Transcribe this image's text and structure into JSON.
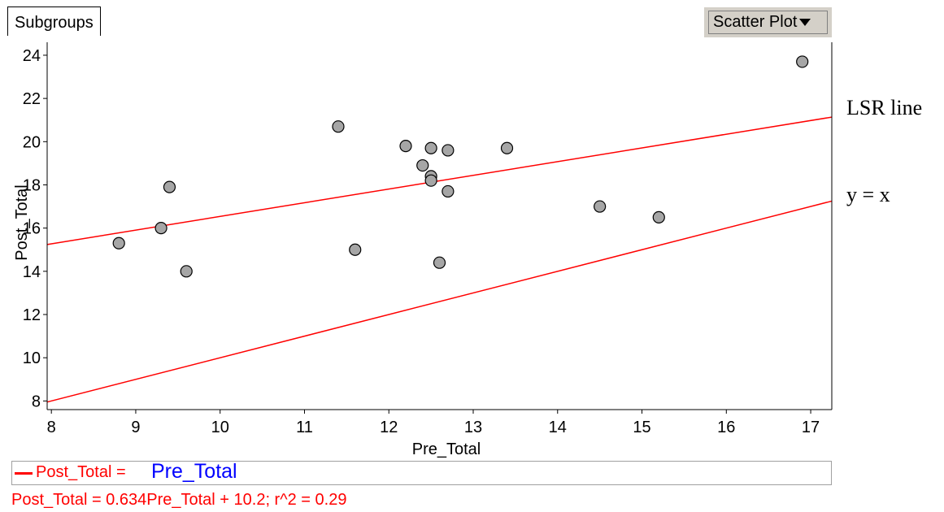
{
  "toolbar": {
    "subgroups_label": "Subgroups",
    "plot_type_label": "Scatter Plot"
  },
  "formula_bar": {
    "lhs": "Post_Total =",
    "rhs": "Pre_Total"
  },
  "regression_text": "Post_Total = 0.634Pre_Total + 10.2; r^2 = 0.29",
  "annotations": {
    "lsr_label": "LSR line",
    "identity_label": "y = x"
  },
  "colors": {
    "line": "#ff0000",
    "point_fill": "#a6a6a6",
    "point_stroke": "#000000",
    "formula_rhs": "#0000ff"
  },
  "chart_data": {
    "type": "scatter",
    "xlabel": "Pre_Total",
    "ylabel": "Post_Total",
    "xlim": [
      7.95,
      17.25
    ],
    "ylim": [
      7.6,
      24.6
    ],
    "xticks": [
      8,
      9,
      10,
      11,
      12,
      13,
      14,
      15,
      16,
      17
    ],
    "yticks": [
      8,
      10,
      12,
      14,
      16,
      18,
      20,
      22,
      24
    ],
    "grid": false,
    "points": [
      {
        "x": 8.8,
        "y": 15.3
      },
      {
        "x": 9.3,
        "y": 16.0
      },
      {
        "x": 9.4,
        "y": 17.9
      },
      {
        "x": 9.6,
        "y": 14.0
      },
      {
        "x": 11.4,
        "y": 20.7
      },
      {
        "x": 11.6,
        "y": 15.0
      },
      {
        "x": 12.2,
        "y": 19.8
      },
      {
        "x": 12.4,
        "y": 18.9
      },
      {
        "x": 12.5,
        "y": 19.7
      },
      {
        "x": 12.5,
        "y": 18.4
      },
      {
        "x": 12.5,
        "y": 18.2
      },
      {
        "x": 12.6,
        "y": 14.4
      },
      {
        "x": 12.7,
        "y": 19.6
      },
      {
        "x": 12.7,
        "y": 17.7
      },
      {
        "x": 13.4,
        "y": 19.7
      },
      {
        "x": 14.5,
        "y": 17.0
      },
      {
        "x": 15.2,
        "y": 16.5
      },
      {
        "x": 16.9,
        "y": 23.7
      }
    ],
    "lines": [
      {
        "kind": "lsr",
        "slope": 0.634,
        "intercept": 10.2
      },
      {
        "kind": "identity",
        "slope": 1,
        "intercept": 0
      }
    ]
  }
}
